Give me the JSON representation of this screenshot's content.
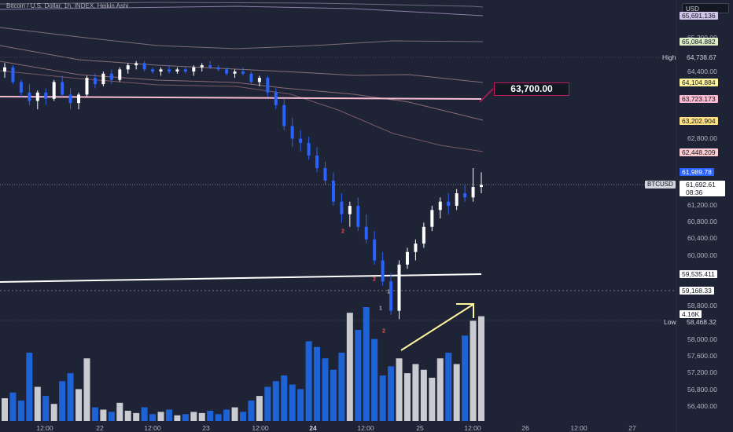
{
  "header": {
    "symbol_title": "Bitcoin / U.S. Dollar, 1h, INDEX, Heikin Ashi",
    "currency": "USD"
  },
  "price_axis": {
    "ticks": [
      "65,200.00",
      "64,400.00",
      "62,800.00",
      "61,200.00",
      "60,800.00",
      "60,400.00",
      "60,000.00",
      "58,800.00",
      "58,000.00",
      "57,600.00",
      "57,200.00",
      "56,800.00",
      "56,400.00"
    ],
    "tags": [
      {
        "text": "65,691.136",
        "bg": "#d1c4e9"
      },
      {
        "text": "65,084.882",
        "bg": "#dcedc8"
      },
      {
        "text": "64,104.884",
        "bg": "#fff59d"
      },
      {
        "text": "63,723.173",
        "bg": "#f8bbd0"
      },
      {
        "text": "63,202.904",
        "bg": "#ffe082"
      },
      {
        "text": "62,448.209",
        "bg": "#ffcdd2"
      },
      {
        "text": "61,989.78",
        "bg": "#2962ff"
      },
      {
        "text": "59,535.411",
        "bg": "#ffffff"
      },
      {
        "text": "59,168.33",
        "bg": "#ffffff"
      },
      {
        "text": "4.16K",
        "bg": "#ffffff"
      }
    ],
    "high": {
      "label": "High",
      "value": "64,738.67"
    },
    "low": {
      "label": "Low",
      "value": "58,468.32"
    },
    "last": {
      "symbol": "BTCUSD",
      "price": "61,692.61",
      "countdown": "08:36"
    }
  },
  "time_axis": [
    "12:00",
    "22",
    "12:00",
    "23",
    "12:00",
    "24",
    "12:00",
    "25",
    "12:00",
    "26",
    "12:00",
    "27"
  ],
  "annotation": {
    "callout": "63,700.00"
  },
  "markers": [
    "2",
    "2",
    "1",
    "1",
    "2"
  ],
  "chart_data": {
    "type": "candlestick",
    "title": "Bitcoin / U.S. Dollar, 1h, INDEX, Heikin Ashi",
    "bull_color": "#ffffff",
    "bear_color": "#2962ff",
    "candles": [
      [
        64400,
        64600,
        64250,
        64500
      ],
      [
        64500,
        64550,
        64100,
        64150
      ],
      [
        64150,
        64200,
        63800,
        63900
      ],
      [
        63900,
        64100,
        63600,
        63700
      ],
      [
        63700,
        63950,
        63500,
        63900
      ],
      [
        63900,
        64000,
        63600,
        63750
      ],
      [
        63750,
        64200,
        63700,
        64150
      ],
      [
        64150,
        64300,
        63800,
        63850
      ],
      [
        63850,
        64000,
        63500,
        63650
      ],
      [
        63650,
        63900,
        63500,
        63850
      ],
      [
        63850,
        64300,
        63800,
        64250
      ],
      [
        64250,
        64350,
        64000,
        64100
      ],
      [
        64100,
        64400,
        64050,
        64350
      ],
      [
        64350,
        64450,
        64100,
        64200
      ],
      [
        64200,
        64500,
        64150,
        64450
      ],
      [
        64450,
        64600,
        64350,
        64550
      ],
      [
        64550,
        64650,
        64450,
        64600
      ],
      [
        64600,
        64650,
        64400,
        64450
      ],
      [
        64450,
        64500,
        64350,
        64400
      ],
      [
        64400,
        64500,
        64300,
        64450
      ],
      [
        64450,
        64550,
        64350,
        64400
      ],
      [
        64400,
        64500,
        64350,
        64450
      ],
      [
        64450,
        64500,
        64350,
        64400
      ],
      [
        64400,
        64550,
        64300,
        64500
      ],
      [
        64500,
        64600,
        64400,
        64550
      ],
      [
        64550,
        64650,
        64450,
        64500
      ],
      [
        64500,
        64550,
        64400,
        64450
      ],
      [
        64450,
        64500,
        64300,
        64350
      ],
      [
        64350,
        64450,
        64250,
        64400
      ],
      [
        64400,
        64500,
        64300,
        64350
      ],
      [
        64350,
        64400,
        64100,
        64150
      ],
      [
        64150,
        64300,
        64050,
        64250
      ],
      [
        64250,
        64300,
        63800,
        63900
      ],
      [
        63900,
        64000,
        63500,
        63600
      ],
      [
        63600,
        63750,
        63000,
        63100
      ],
      [
        63100,
        63300,
        62600,
        62800
      ],
      [
        62800,
        63000,
        62500,
        62700
      ],
      [
        62700,
        62850,
        62300,
        62400
      ],
      [
        62400,
        62600,
        62000,
        62100
      ],
      [
        62100,
        62250,
        61700,
        61800
      ],
      [
        61800,
        62000,
        61200,
        61300
      ],
      [
        61300,
        61500,
        60800,
        61000
      ],
      [
        61000,
        61300,
        60700,
        61200
      ],
      [
        61200,
        61400,
        60600,
        60700
      ],
      [
        60700,
        61000,
        60300,
        60400
      ],
      [
        60400,
        60600,
        59800,
        59900
      ],
      [
        59900,
        60100,
        59300,
        59400
      ],
      [
        59400,
        59600,
        58600,
        58700
      ],
      [
        58700,
        59900,
        58500,
        59800
      ],
      [
        59800,
        60200,
        59700,
        60100
      ],
      [
        60100,
        60400,
        59900,
        60300
      ],
      [
        60300,
        60800,
        60200,
        60700
      ],
      [
        60700,
        61200,
        60600,
        61100
      ],
      [
        61100,
        61400,
        60900,
        61300
      ],
      [
        61300,
        61500,
        61000,
        61200
      ],
      [
        61200,
        61600,
        61100,
        61500
      ],
      [
        61500,
        61700,
        61300,
        61400
      ],
      [
        61400,
        62100,
        61300,
        61650
      ],
      [
        61650,
        62000,
        61500,
        61700
      ]
    ],
    "volume": [
      20,
      25,
      18,
      60,
      30,
      22,
      15,
      35,
      42,
      28,
      55,
      12,
      10,
      8,
      16,
      9,
      7,
      12,
      6,
      8,
      10,
      5,
      6,
      8,
      7,
      9,
      6,
      10,
      12,
      8,
      18,
      22,
      30,
      35,
      40,
      32,
      28,
      70,
      65,
      55,
      45,
      60,
      95,
      80,
      100,
      72,
      40,
      48,
      55,
      42,
      50,
      45,
      38,
      55,
      60,
      50,
      75,
      88,
      92
    ]
  }
}
